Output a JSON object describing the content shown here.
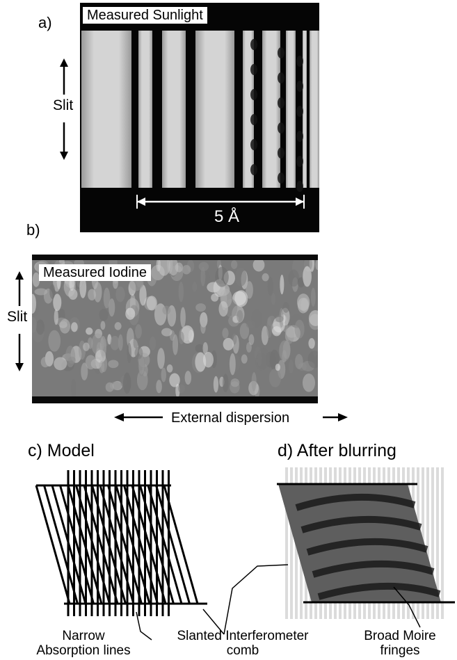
{
  "panel_a": {
    "letter": "a)",
    "image_label": "Measured Sunlight",
    "slit_label": "Slit",
    "scale_label": "5 Å"
  },
  "panel_b": {
    "letter": "b)",
    "image_label": "Measured Iodine",
    "slit_label": "Slit",
    "axis_label": "External dispersion"
  },
  "panel_c": {
    "heading": "c) Model"
  },
  "panel_d": {
    "heading": "d) After blurring"
  },
  "callouts": {
    "narrow_line1": "Narrow",
    "narrow_line2": "Absorption lines",
    "slanted_line1": "Slanted Interferometer",
    "slanted_line2": "comb",
    "moire_line1": "Broad Moire",
    "moire_line2": "fringes"
  },
  "colors": {
    "background": "#ffffff",
    "image_dark": "#050505",
    "image_light": "#cfcfcf"
  }
}
